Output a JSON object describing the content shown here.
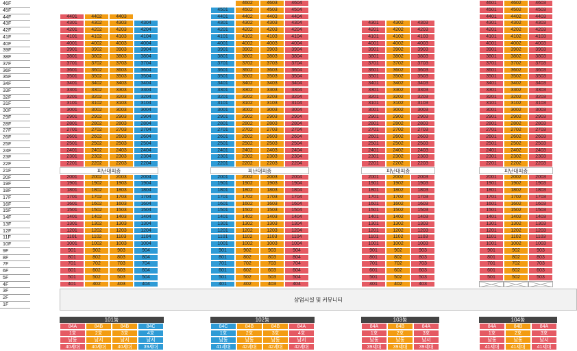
{
  "floor_labels": [
    "46F",
    "45F",
    "44F",
    "43F",
    "42F",
    "41F",
    "40F",
    "39F",
    "38F",
    "37F",
    "36F",
    "35F",
    "34F",
    "33F",
    "32F",
    "31F",
    "30F",
    "29F",
    "28F",
    "27F",
    "26F",
    "25F",
    "24F",
    "23F",
    "22F",
    "21F",
    "20F",
    "19F",
    "18F",
    "17F",
    "16F",
    "15F",
    "14F",
    "13F",
    "12F",
    "11F",
    "10F",
    "9F",
    "8F",
    "7F",
    "6F",
    "5F",
    "4F",
    "3F",
    "2F",
    "1F"
  ],
  "refuge_label": "피난대피층",
  "podium_label": "상업시설 및 커뮤니티",
  "colors": {
    "red": "#E55A63",
    "orange": "#F39C12",
    "blue": "#2E9BD6"
  },
  "buildings": [
    {
      "id": "101",
      "name": "101동",
      "lines": [
        {
          "line": "01",
          "color": "red",
          "top": 44,
          "type": "84A",
          "unit_label": "1호",
          "orientation": "남동",
          "households": "40세대"
        },
        {
          "line": "02",
          "color": "orange",
          "top": 44,
          "type": "84B",
          "unit_label": "2호",
          "orientation": "남서",
          "households": "40세대"
        },
        {
          "line": "03",
          "color": "orange",
          "top": 44,
          "type": "84B",
          "unit_label": "3호",
          "orientation": "남서",
          "households": "40세대"
        },
        {
          "line": "04",
          "color": "blue",
          "top": 43,
          "type": "84C",
          "unit_label": "4호",
          "orientation": "남서",
          "households": "39세대"
        }
      ]
    },
    {
      "id": "102",
      "name": "102동",
      "lines": [
        {
          "line": "01",
          "color": "blue",
          "top": 45,
          "type": "84C",
          "unit_label": "1호",
          "orientation": "남동",
          "households": "41세대"
        },
        {
          "line": "02",
          "color": "orange",
          "top": 46,
          "type": "84B",
          "unit_label": "2호",
          "orientation": "남동",
          "households": "42세대"
        },
        {
          "line": "03",
          "color": "orange",
          "top": 46,
          "type": "84B",
          "unit_label": "3호",
          "orientation": "남동",
          "households": "42세대"
        },
        {
          "line": "04",
          "color": "red",
          "top": 46,
          "type": "84A",
          "unit_label": "4호",
          "orientation": "남서",
          "households": "42세대"
        }
      ]
    },
    {
      "id": "103",
      "name": "103동",
      "lines": [
        {
          "line": "01",
          "color": "red",
          "top": 43,
          "type": "84A",
          "unit_label": "1호",
          "orientation": "남동",
          "households": "39세대"
        },
        {
          "line": "02",
          "color": "orange",
          "top": 43,
          "type": "84B",
          "unit_label": "2호",
          "orientation": "남동",
          "households": "39세대"
        },
        {
          "line": "03",
          "color": "red",
          "top": 43,
          "type": "84A",
          "unit_label": "3호",
          "orientation": "남서",
          "households": "39세대"
        }
      ]
    },
    {
      "id": "104",
      "name": "104동",
      "lines": [
        {
          "line": "01",
          "color": "red",
          "top": 46,
          "type": "84A",
          "unit_label": "1호",
          "orientation": "남동",
          "households": "41세대"
        },
        {
          "line": "02",
          "color": "orange",
          "top": 46,
          "type": "84B",
          "unit_label": "2호",
          "orientation": "남동",
          "households": "41세대"
        },
        {
          "line": "03",
          "color": "red",
          "top": 46,
          "type": "84A",
          "unit_label": "3호",
          "orientation": "남서",
          "households": "41세대"
        }
      ]
    }
  ]
}
